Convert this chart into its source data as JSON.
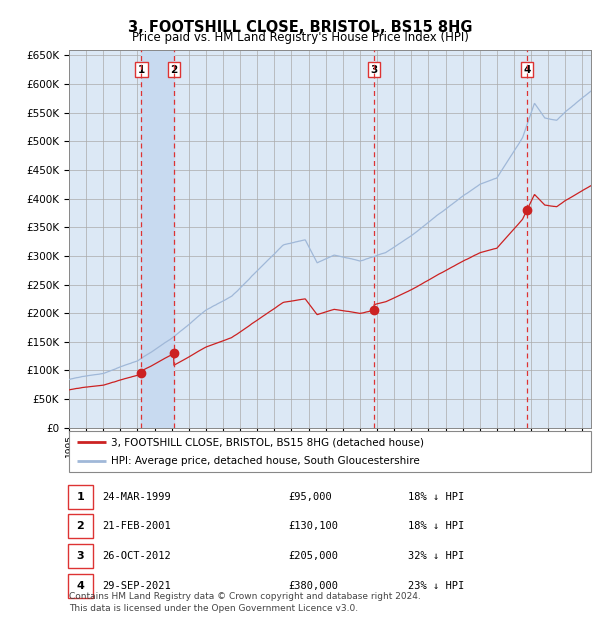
{
  "title": "3, FOOTSHILL CLOSE, BRISTOL, BS15 8HG",
  "subtitle": "Price paid vs. HM Land Registry's House Price Index (HPI)",
  "ylim": [
    0,
    660000
  ],
  "yticks": [
    0,
    50000,
    100000,
    150000,
    200000,
    250000,
    300000,
    350000,
    400000,
    450000,
    500000,
    550000,
    600000,
    650000
  ],
  "background_color": "#ffffff",
  "plot_bg_color": "#dce8f5",
  "grid_color": "#aaaaaa",
  "hpi_line_color": "#a0b8d8",
  "price_line_color": "#cc2222",
  "dashed_line_color": "#dd3333",
  "shade_color": "#c8daf0",
  "transactions": [
    {
      "id": 1,
      "date_num": 1999.23,
      "price": 95000
    },
    {
      "id": 2,
      "date_num": 2001.13,
      "price": 130100
    },
    {
      "id": 3,
      "date_num": 2012.82,
      "price": 205000
    },
    {
      "id": 4,
      "date_num": 2021.75,
      "price": 380000
    }
  ],
  "legend_entries": [
    "3, FOOTSHILL CLOSE, BRISTOL, BS15 8HG (detached house)",
    "HPI: Average price, detached house, South Gloucestershire"
  ],
  "table_rows": [
    {
      "id": 1,
      "date": "24-MAR-1999",
      "price": "£95,000",
      "info": "18% ↓ HPI"
    },
    {
      "id": 2,
      "date": "21-FEB-2001",
      "price": "£130,100",
      "info": "18% ↓ HPI"
    },
    {
      "id": 3,
      "date": "26-OCT-2012",
      "price": "£205,000",
      "info": "32% ↓ HPI"
    },
    {
      "id": 4,
      "date": "29-SEP-2021",
      "price": "£380,000",
      "info": "23% ↓ HPI"
    }
  ],
  "footer1": "Contains HM Land Registry data © Crown copyright and database right 2024.",
  "footer2": "This data is licensed under the Open Government Licence v3.0.",
  "xmin": 1995.0,
  "xmax": 2025.5
}
